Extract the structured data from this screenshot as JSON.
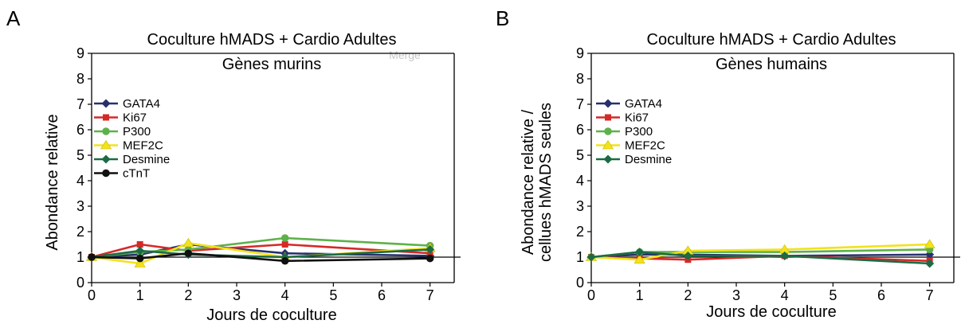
{
  "chart_data": [
    {
      "panel_label": "A",
      "type": "line",
      "title": "Coculture hMADS + Cardio Adultes",
      "subtitle": "Gènes murins",
      "watermark": "Merge",
      "xlabel": "Jours de coculture",
      "ylabel": [
        "Abondance relative"
      ],
      "x": [
        0,
        1,
        2,
        4,
        7
      ],
      "xlim": [
        0,
        7.5
      ],
      "ylim": [
        0,
        9
      ],
      "xticks": [
        0,
        1,
        2,
        3,
        4,
        5,
        6,
        7
      ],
      "yticks": [
        0,
        1,
        2,
        3,
        4,
        5,
        6,
        7,
        8,
        9
      ],
      "reference_line": 1,
      "legend_position": "left",
      "series": [
        {
          "name": "GATA4",
          "color": "#27306e",
          "marker": "diamond",
          "values": [
            1.0,
            1.1,
            1.5,
            1.15,
            1.05
          ]
        },
        {
          "name": "Ki67",
          "color": "#d42a27",
          "marker": "square",
          "values": [
            1.0,
            1.5,
            1.25,
            1.5,
            1.15
          ]
        },
        {
          "name": "P300",
          "color": "#5eb14a",
          "marker": "circle",
          "values": [
            1.0,
            1.2,
            1.3,
            1.75,
            1.45
          ]
        },
        {
          "name": "MEF2C",
          "color": "#f2e21c",
          "marker": "triangle",
          "values": [
            1.0,
            0.75,
            1.55,
            1.0,
            1.35
          ]
        },
        {
          "name": "Desmine",
          "color": "#1c6b45",
          "marker": "diamond",
          "values": [
            1.0,
            1.25,
            1.1,
            1.0,
            1.3
          ]
        },
        {
          "name": "cTnT",
          "color": "#111111",
          "marker": "circle",
          "values": [
            1.0,
            0.95,
            1.15,
            0.85,
            0.95
          ]
        }
      ]
    },
    {
      "panel_label": "B",
      "type": "line",
      "title": "Coculture hMADS + Cardio Adultes",
      "subtitle": "Gènes humains",
      "xlabel": "Jours de coculture",
      "ylabel": [
        "Abondance relative /",
        "cellues hMADS seules"
      ],
      "x": [
        0,
        1,
        2,
        4,
        7
      ],
      "xlim": [
        0,
        7.5
      ],
      "ylim": [
        0,
        9
      ],
      "xticks": [
        0,
        1,
        2,
        3,
        4,
        5,
        6,
        7
      ],
      "yticks": [
        0,
        1,
        2,
        3,
        4,
        5,
        6,
        7,
        8,
        9
      ],
      "reference_line": 1,
      "legend_position": "left",
      "series": [
        {
          "name": "GATA4",
          "color": "#27306e",
          "marker": "diamond",
          "values": [
            1.0,
            1.1,
            1.1,
            1.05,
            1.1
          ]
        },
        {
          "name": "Ki67",
          "color": "#d42a27",
          "marker": "square",
          "values": [
            1.0,
            0.95,
            0.9,
            1.05,
            0.85
          ]
        },
        {
          "name": "P300",
          "color": "#5eb14a",
          "marker": "circle",
          "values": [
            1.0,
            1.2,
            1.2,
            1.2,
            1.3
          ]
        },
        {
          "name": "MEF2C",
          "color": "#f2e21c",
          "marker": "triangle",
          "values": [
            1.0,
            0.9,
            1.25,
            1.3,
            1.5
          ]
        },
        {
          "name": "Desmine",
          "color": "#1c6b45",
          "marker": "diamond",
          "values": [
            1.0,
            1.2,
            1.05,
            1.05,
            0.75
          ]
        }
      ]
    }
  ]
}
